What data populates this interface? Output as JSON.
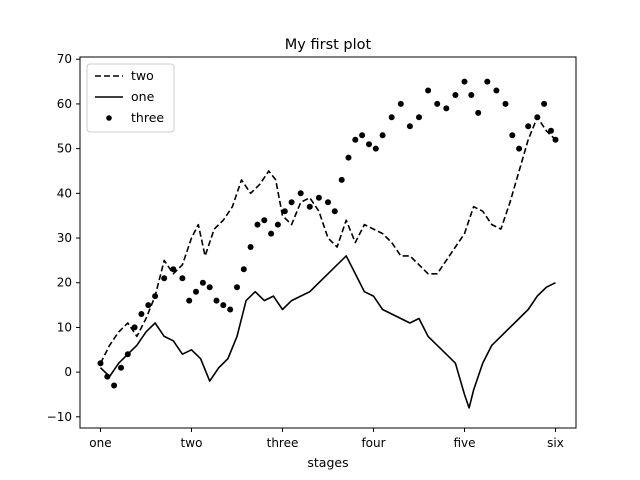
{
  "chart_data": {
    "type": "line",
    "title": "My first plot",
    "xlabel": "stages",
    "ylabel": "",
    "x_ticks": [
      {
        "value": 0,
        "label": "one"
      },
      {
        "value": 200,
        "label": "two"
      },
      {
        "value": 400,
        "label": "three"
      },
      {
        "value": 600,
        "label": "four"
      },
      {
        "value": 800,
        "label": "five"
      },
      {
        "value": 1000,
        "label": "six"
      }
    ],
    "xlim": [
      -45,
      1045
    ],
    "y_ticks": [
      -10,
      0,
      10,
      20,
      30,
      40,
      50,
      60,
      70
    ],
    "ylim": [
      -12.5,
      70.5
    ],
    "grid": false,
    "legend_position": "top-left",
    "color": "#000000",
    "series": [
      {
        "name": "two",
        "style": "dashed",
        "points": [
          [
            0,
            2
          ],
          [
            20,
            6
          ],
          [
            40,
            9
          ],
          [
            60,
            11
          ],
          [
            80,
            8
          ],
          [
            100,
            12
          ],
          [
            120,
            17
          ],
          [
            140,
            25
          ],
          [
            160,
            22
          ],
          [
            180,
            24
          ],
          [
            200,
            30
          ],
          [
            215,
            33
          ],
          [
            230,
            26
          ],
          [
            250,
            32
          ],
          [
            270,
            34
          ],
          [
            290,
            37
          ],
          [
            310,
            43
          ],
          [
            330,
            40
          ],
          [
            350,
            42
          ],
          [
            370,
            45
          ],
          [
            385,
            43
          ],
          [
            400,
            35
          ],
          [
            420,
            33
          ],
          [
            440,
            38
          ],
          [
            460,
            39
          ],
          [
            480,
            36
          ],
          [
            500,
            30
          ],
          [
            520,
            28
          ],
          [
            540,
            34
          ],
          [
            560,
            29
          ],
          [
            580,
            33
          ],
          [
            600,
            32
          ],
          [
            620,
            31
          ],
          [
            640,
            29
          ],
          [
            660,
            26
          ],
          [
            680,
            26
          ],
          [
            700,
            24
          ],
          [
            720,
            22
          ],
          [
            740,
            22
          ],
          [
            760,
            25
          ],
          [
            780,
            28
          ],
          [
            800,
            31
          ],
          [
            820,
            37
          ],
          [
            840,
            36
          ],
          [
            860,
            33
          ],
          [
            880,
            32
          ],
          [
            900,
            38
          ],
          [
            920,
            45
          ],
          [
            940,
            52
          ],
          [
            960,
            57
          ],
          [
            980,
            54
          ],
          [
            1000,
            52
          ]
        ]
      },
      {
        "name": "one",
        "style": "solid",
        "points": [
          [
            0,
            1
          ],
          [
            20,
            -1
          ],
          [
            40,
            2
          ],
          [
            60,
            4
          ],
          [
            80,
            6
          ],
          [
            100,
            9
          ],
          [
            120,
            11
          ],
          [
            140,
            8
          ],
          [
            160,
            7
          ],
          [
            180,
            4
          ],
          [
            200,
            5
          ],
          [
            220,
            3
          ],
          [
            240,
            -2
          ],
          [
            260,
            1
          ],
          [
            280,
            3
          ],
          [
            300,
            8
          ],
          [
            320,
            16
          ],
          [
            340,
            18
          ],
          [
            360,
            16
          ],
          [
            380,
            17
          ],
          [
            400,
            14
          ],
          [
            420,
            16
          ],
          [
            440,
            17
          ],
          [
            460,
            18
          ],
          [
            480,
            20
          ],
          [
            500,
            22
          ],
          [
            520,
            24
          ],
          [
            540,
            26
          ],
          [
            560,
            22
          ],
          [
            580,
            18
          ],
          [
            600,
            17
          ],
          [
            620,
            14
          ],
          [
            640,
            13
          ],
          [
            660,
            12
          ],
          [
            680,
            11
          ],
          [
            700,
            12
          ],
          [
            720,
            8
          ],
          [
            740,
            6
          ],
          [
            760,
            4
          ],
          [
            780,
            2
          ],
          [
            800,
            -5
          ],
          [
            810,
            -8
          ],
          [
            820,
            -4
          ],
          [
            840,
            2
          ],
          [
            860,
            6
          ],
          [
            880,
            8
          ],
          [
            900,
            10
          ],
          [
            920,
            12
          ],
          [
            940,
            14
          ],
          [
            960,
            17
          ],
          [
            980,
            19
          ],
          [
            1000,
            20
          ]
        ]
      },
      {
        "name": "three",
        "style": "dotted-markers",
        "points": [
          [
            0,
            2
          ],
          [
            15,
            -1
          ],
          [
            30,
            -3
          ],
          [
            45,
            1
          ],
          [
            60,
            4
          ],
          [
            75,
            10
          ],
          [
            90,
            13
          ],
          [
            105,
            15
          ],
          [
            120,
            17
          ],
          [
            140,
            21
          ],
          [
            160,
            23
          ],
          [
            180,
            21
          ],
          [
            195,
            16
          ],
          [
            210,
            18
          ],
          [
            225,
            20
          ],
          [
            240,
            19
          ],
          [
            255,
            16
          ],
          [
            270,
            15
          ],
          [
            285,
            14
          ],
          [
            300,
            19
          ],
          [
            315,
            23
          ],
          [
            330,
            28
          ],
          [
            345,
            33
          ],
          [
            360,
            34
          ],
          [
            375,
            31
          ],
          [
            390,
            33
          ],
          [
            405,
            36
          ],
          [
            420,
            38
          ],
          [
            440,
            40
          ],
          [
            460,
            37
          ],
          [
            480,
            39
          ],
          [
            500,
            38
          ],
          [
            515,
            36
          ],
          [
            530,
            43
          ],
          [
            545,
            48
          ],
          [
            560,
            52
          ],
          [
            575,
            53
          ],
          [
            590,
            51
          ],
          [
            605,
            50
          ],
          [
            620,
            53
          ],
          [
            640,
            57
          ],
          [
            660,
            60
          ],
          [
            680,
            55
          ],
          [
            700,
            57
          ],
          [
            720,
            63
          ],
          [
            740,
            60
          ],
          [
            760,
            59
          ],
          [
            780,
            62
          ],
          [
            800,
            65
          ],
          [
            815,
            62
          ],
          [
            830,
            58
          ],
          [
            850,
            65
          ],
          [
            870,
            63
          ],
          [
            890,
            60
          ],
          [
            905,
            53
          ],
          [
            920,
            50
          ],
          [
            940,
            55
          ],
          [
            960,
            57
          ],
          [
            975,
            60
          ],
          [
            990,
            54
          ],
          [
            1000,
            52
          ]
        ]
      }
    ]
  }
}
